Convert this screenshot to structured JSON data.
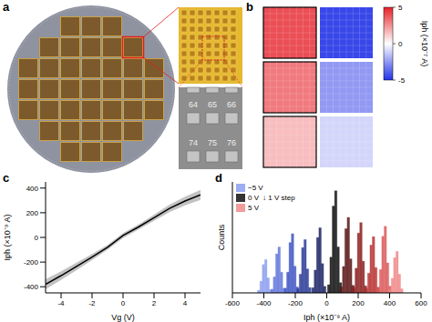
{
  "figure": {
    "panel_labels": [
      "a",
      "b",
      "c",
      "d"
    ],
    "device_labels": [
      "64",
      "65",
      "66",
      "74",
      "75",
      "76"
    ]
  },
  "chart_data": [
    {
      "type": "heatmap",
      "cells": [
        [
          4,
          -4.5
        ],
        [
          3,
          -2.5
        ],
        [
          1.5,
          -1
        ]
      ],
      "colorbar_label": "Iph (×10⁻⁷ A)",
      "colorbar_range": [
        -5,
        5
      ],
      "colorbar_ticks": [
        -5,
        0,
        5
      ]
    },
    {
      "type": "line",
      "xlabel": "Vg (V)",
      "ylabel": "Iph (×10⁻⁹ A)",
      "x": [
        -5,
        -4,
        -3,
        -2,
        -1,
        0,
        1,
        2,
        3,
        4,
        5
      ],
      "values": [
        -380,
        -310,
        -235,
        -160,
        -80,
        15,
        85,
        160,
        235,
        295,
        345
      ],
      "lower": [
        -420,
        -345,
        -265,
        -185,
        -100,
        -5,
        65,
        135,
        205,
        260,
        305
      ],
      "upper": [
        -340,
        -275,
        -205,
        -135,
        -60,
        35,
        105,
        185,
        265,
        330,
        385
      ],
      "color": "#000000",
      "xlim": [
        -5,
        5
      ],
      "xticks": [
        -4,
        -2,
        0,
        2,
        4
      ],
      "ylim": [
        -450,
        450
      ],
      "yticks": [
        -400,
        -200,
        0,
        200,
        400
      ]
    },
    {
      "type": "histogram",
      "xlabel": "Iph (×10⁻⁹ A)",
      "ylabel": "Counts",
      "annotation": "↓ 1 V step",
      "xlim": [
        -600,
        600
      ],
      "xticks": [
        -600,
        -400,
        -200,
        0,
        200,
        400,
        600
      ],
      "ylim": [
        0,
        1500
      ],
      "tick_labels": "x",
      "series": [
        {
          "name": "−5 V",
          "color": "#8c9ff0",
          "bins": [
            -440,
            -425,
            -410,
            -395,
            -380,
            -365,
            -350
          ],
          "counts": [
            36,
            158,
            383,
            450,
            203,
            45
          ]
        },
        {
          "color": "#6478dc",
          "bins": [
            -355,
            -340,
            -325,
            -310,
            -295,
            -280,
            -265
          ],
          "counts": [
            50,
            217,
            527,
            620,
            279,
            62
          ]
        },
        {
          "color": "#3f55c4",
          "bins": [
            -270,
            -255,
            -240,
            -225,
            -210,
            -195,
            -180
          ],
          "counts": [
            64,
            280,
            680,
            800,
            360,
            80
          ]
        },
        {
          "color": "#2c3c9a",
          "bins": [
            -190,
            -175,
            -160,
            -145,
            -130,
            -115,
            -100
          ],
          "counts": [
            58,
            252,
            612,
            720,
            324,
            72
          ]
        },
        {
          "color": "#1c2566",
          "bins": [
            -95,
            -80,
            -65,
            -50,
            -35,
            -20,
            -5
          ],
          "counts": [
            70,
            308,
            748,
            880,
            396,
            88
          ]
        },
        {
          "name": "0 V",
          "color": "#111111",
          "bins": [
            5,
            20,
            35,
            50,
            65,
            80,
            95
          ],
          "counts": [
            110,
            483,
            1173,
            1380,
            621,
            138
          ]
        },
        {
          "color": "#5a1414",
          "bins": [
            85,
            100,
            115,
            130,
            145,
            160,
            175
          ],
          "counts": [
            82,
            357,
            867,
            1020,
            459,
            102
          ]
        },
        {
          "color": "#8c1e1e",
          "bins": [
            165,
            180,
            195,
            210,
            225,
            240,
            255
          ],
          "counts": [
            76,
            333,
            808,
            950,
            428,
            95
          ]
        },
        {
          "color": "#b83232",
          "bins": [
            245,
            260,
            275,
            290,
            305,
            320,
            335
          ],
          "counts": [
            61,
            266,
            646,
            760,
            342,
            76
          ]
        },
        {
          "color": "#dc5a5a",
          "bins": [
            320,
            335,
            350,
            365,
            380,
            395,
            410
          ],
          "counts": [
            72,
            315,
            765,
            900,
            405,
            90
          ]
        },
        {
          "name": "5 V",
          "color": "#f08a8a",
          "bins": [
            395,
            410,
            425,
            440,
            455,
            470,
            485
          ],
          "counts": [
            45,
            196,
            476,
            560,
            252,
            56
          ]
        }
      ]
    }
  ]
}
